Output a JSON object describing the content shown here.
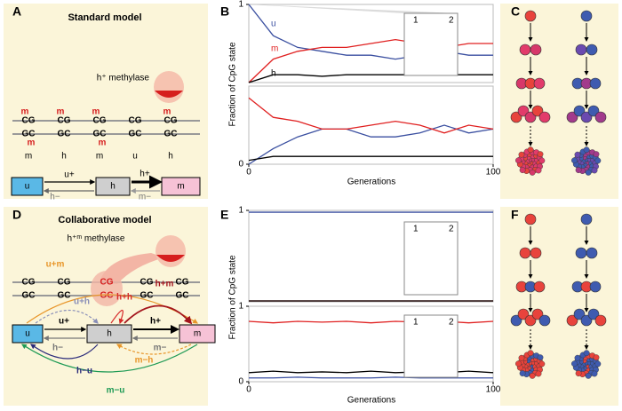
{
  "figure": {
    "panel_labels": [
      "A",
      "B",
      "C",
      "D",
      "E",
      "F"
    ],
    "panel_a": {
      "title": "Standard model",
      "enzyme": "h⁺ methylase",
      "sites": [
        {
          "top": "CG",
          "bottom": "GC",
          "top_mark": "m",
          "bottom_mark": "m",
          "state": "m"
        },
        {
          "top": "CG",
          "bottom": "GC",
          "top_mark": "m",
          "state": "h"
        },
        {
          "top": "CG",
          "bottom": "GC",
          "top_mark": "m",
          "bottom_mark": "m",
          "state": "m"
        },
        {
          "top": "CG",
          "bottom": "GC",
          "state": "u"
        },
        {
          "top": "CG",
          "bottom": "GC",
          "top_mark": "m",
          "state": "h"
        }
      ],
      "boxes": [
        "u",
        "h",
        "m"
      ],
      "rates": [
        "u+",
        "h−",
        "h+",
        "m−"
      ]
    },
    "panel_b": {
      "ylabel": "Fraction of CpG state",
      "xlabel": "Generations"
    },
    "panel_d": {
      "title": "Collaborative model",
      "enzyme": "h⁺ᵐ methylase",
      "sites": [
        {
          "top": "CG",
          "bottom": "GC"
        },
        {
          "top": "CG",
          "bottom": "GC"
        },
        {
          "top": "CG",
          "bottom": "GC",
          "highlight": true
        },
        {
          "top": "CG",
          "bottom": "GC"
        },
        {
          "top": "CG",
          "bottom": "GC"
        }
      ],
      "boxes": [
        "u",
        "h",
        "m"
      ],
      "rates": [
        {
          "label": "u+m",
          "color": "#e8962a"
        },
        {
          "label": "u+h",
          "color": "#8a8fb8"
        },
        {
          "label": "h+h",
          "color": "#d62a2a"
        },
        {
          "label": "h+m",
          "color": "#a3141c"
        },
        {
          "label": "u+",
          "color": "#000000"
        },
        {
          "label": "h+",
          "color": "#000000"
        },
        {
          "label": "h−",
          "color": "#777777"
        },
        {
          "label": "m−h",
          "color": "#e8962a"
        },
        {
          "label": "m−",
          "color": "#777777"
        },
        {
          "label": "h−u",
          "color": "#2a2a7a"
        },
        {
          "label": "m−u",
          "color": "#1e9a55"
        }
      ]
    },
    "panel_e": {
      "ylabel": "Fraction of CpG state",
      "xlabel": "Generations"
    }
  },
  "chart_data": [
    {
      "type": "line",
      "x": [
        0,
        10,
        20,
        30,
        40,
        50,
        60,
        70,
        80,
        90,
        100
      ],
      "xlim": [
        0,
        100
      ],
      "ylim": [
        0,
        1
      ],
      "yticks": [
        1
      ],
      "inset_labels": [
        "1",
        "2"
      ],
      "series": [
        {
          "name": "u",
          "color": "#3a4fa0",
          "values": [
            1,
            0.6,
            0.45,
            0.4,
            0.35,
            0.35,
            0.3,
            0.35,
            0.4,
            0.35,
            0.35
          ]
        },
        {
          "name": "m",
          "color": "#e02020",
          "values": [
            0,
            0.3,
            0.4,
            0.45,
            0.45,
            0.5,
            0.55,
            0.5,
            0.45,
            0.5,
            0.5
          ]
        },
        {
          "name": "h",
          "color": "#000000",
          "values": [
            0,
            0.1,
            0.1,
            0.08,
            0.1,
            0.1,
            0.1,
            0.1,
            0.1,
            0.1,
            0.1
          ]
        }
      ]
    },
    {
      "type": "line",
      "x": [
        0,
        10,
        20,
        30,
        40,
        50,
        60,
        70,
        80,
        90,
        100
      ],
      "xlim": [
        0,
        100
      ],
      "ylim": [
        0,
        1
      ],
      "yticks": [
        0
      ],
      "xticks": [
        0,
        100
      ],
      "series": [
        {
          "color": "#3a4fa0",
          "values": [
            0,
            0.2,
            0.35,
            0.45,
            0.45,
            0.35,
            0.35,
            0.4,
            0.5,
            0.4,
            0.45
          ]
        },
        {
          "color": "#e02020",
          "values": [
            0.85,
            0.6,
            0.55,
            0.45,
            0.45,
            0.5,
            0.55,
            0.5,
            0.4,
            0.5,
            0.45
          ]
        },
        {
          "color": "#000000",
          "values": [
            0.05,
            0.1,
            0.1,
            0.1,
            0.1,
            0.1,
            0.1,
            0.1,
            0.1,
            0.1,
            0.1
          ]
        }
      ]
    },
    {
      "type": "line",
      "x": [
        0,
        10,
        20,
        30,
        40,
        50,
        60,
        70,
        80,
        90,
        100
      ],
      "xlim": [
        0,
        100
      ],
      "ylim": [
        0,
        1
      ],
      "yticks": [
        1
      ],
      "inset_labels": [
        "1",
        "2"
      ],
      "series": [
        {
          "color": "#3a4fa0",
          "values": [
            0.98,
            0.98,
            0.98,
            0.98,
            0.98,
            0.98,
            0.98,
            0.98,
            0.98,
            0.98,
            0.98
          ]
        },
        {
          "color": "#e02020",
          "values": [
            0.01,
            0.01,
            0.01,
            0.01,
            0.01,
            0.01,
            0.01,
            0.01,
            0.01,
            0.01,
            0.01
          ]
        },
        {
          "color": "#000000",
          "values": [
            0.01,
            0.01,
            0.01,
            0.01,
            0.01,
            0.01,
            0.01,
            0.01,
            0.01,
            0.01,
            0.01
          ]
        }
      ]
    },
    {
      "type": "line",
      "x": [
        0,
        10,
        20,
        30,
        40,
        50,
        60,
        70,
        80,
        90,
        100
      ],
      "xlim": [
        0,
        100
      ],
      "ylim": [
        0,
        1
      ],
      "yticks": [
        0,
        1
      ],
      "xticks": [
        0,
        100
      ],
      "inset_labels": [
        "1",
        "2"
      ],
      "series": [
        {
          "color": "#3a4fa0",
          "values": [
            0.05,
            0.05,
            0.06,
            0.05,
            0.05,
            0.05,
            0.06,
            0.05,
            0.05,
            0.05,
            0.05
          ]
        },
        {
          "color": "#e02020",
          "values": [
            0.8,
            0.78,
            0.8,
            0.79,
            0.8,
            0.78,
            0.8,
            0.79,
            0.8,
            0.78,
            0.8
          ]
        },
        {
          "color": "#000000",
          "values": [
            0.12,
            0.14,
            0.12,
            0.13,
            0.12,
            0.14,
            0.12,
            0.13,
            0.12,
            0.14,
            0.12
          ]
        }
      ]
    }
  ]
}
